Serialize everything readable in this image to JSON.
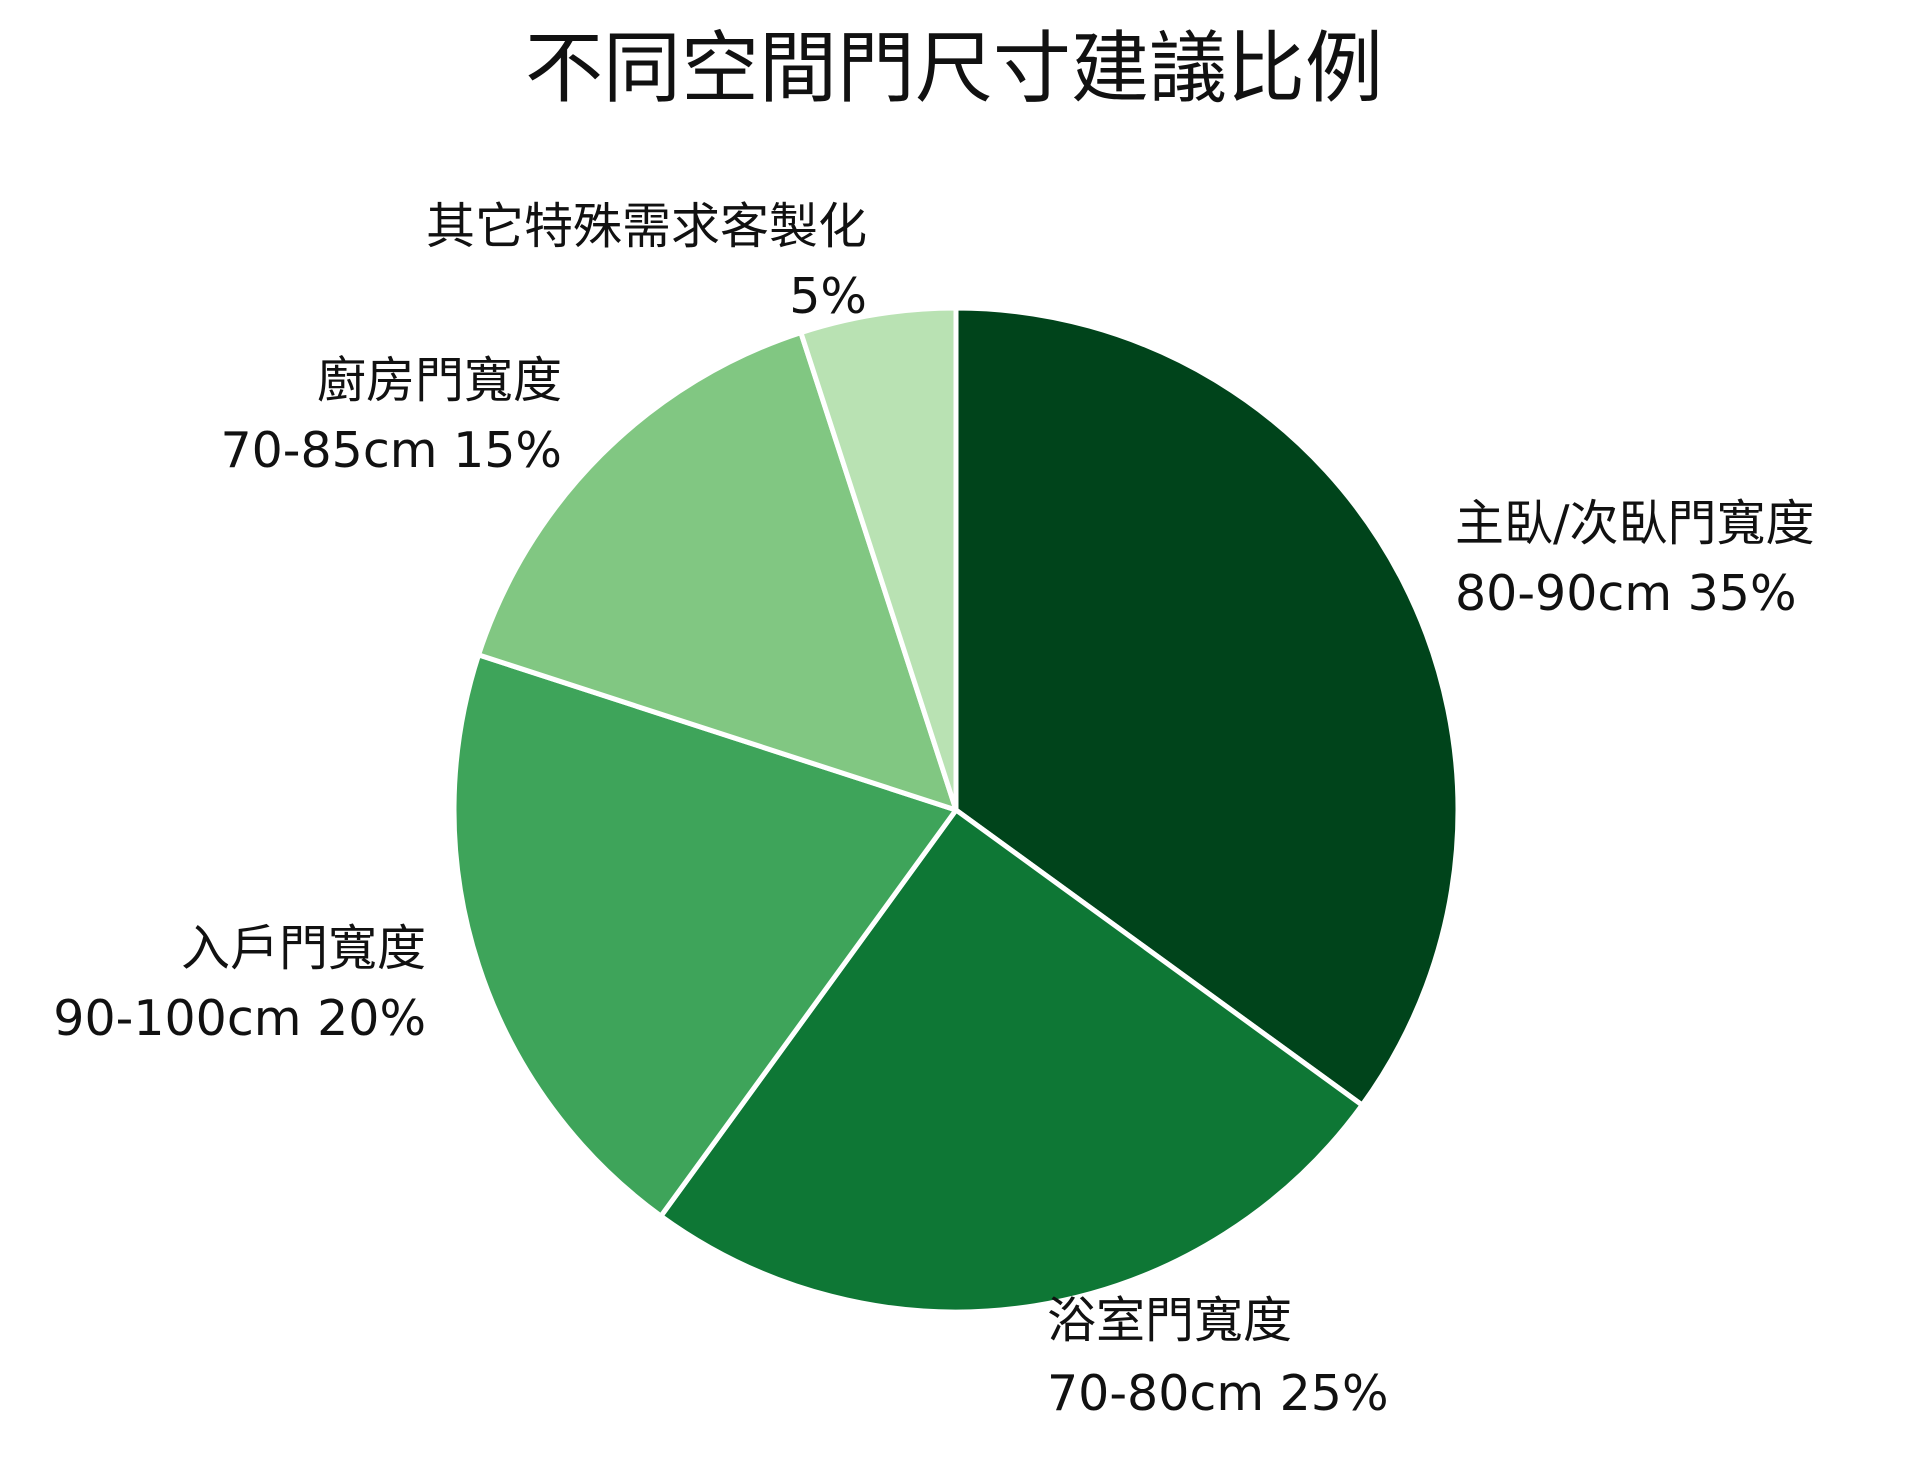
{
  "chart_data": {
    "type": "pie",
    "title": "不同空間門尺寸建議比例",
    "start_angle": "12 o'clock",
    "direction": "clockwise",
    "slices": [
      {
        "name": "主臥/次臥門寬度",
        "size": "80-90cm",
        "value": 35,
        "value_label": "35%",
        "color": "#00441b"
      },
      {
        "name": "浴室門寬度",
        "size": "70-80cm",
        "value": 25,
        "value_label": "25%",
        "color": "#0e7735"
      },
      {
        "name": "入戶門寬度",
        "size": "90-100cm",
        "value": 20,
        "value_label": "20%",
        "color": "#3ea45a"
      },
      {
        "name": "廚房門寬度",
        "size": "70-85cm",
        "value": 15,
        "value_label": "15%",
        "color": "#81c782"
      },
      {
        "name": "其它特殊需求客製化",
        "size": "",
        "value": 5,
        "value_label": "5%",
        "color": "#b9e2b3"
      }
    ]
  }
}
